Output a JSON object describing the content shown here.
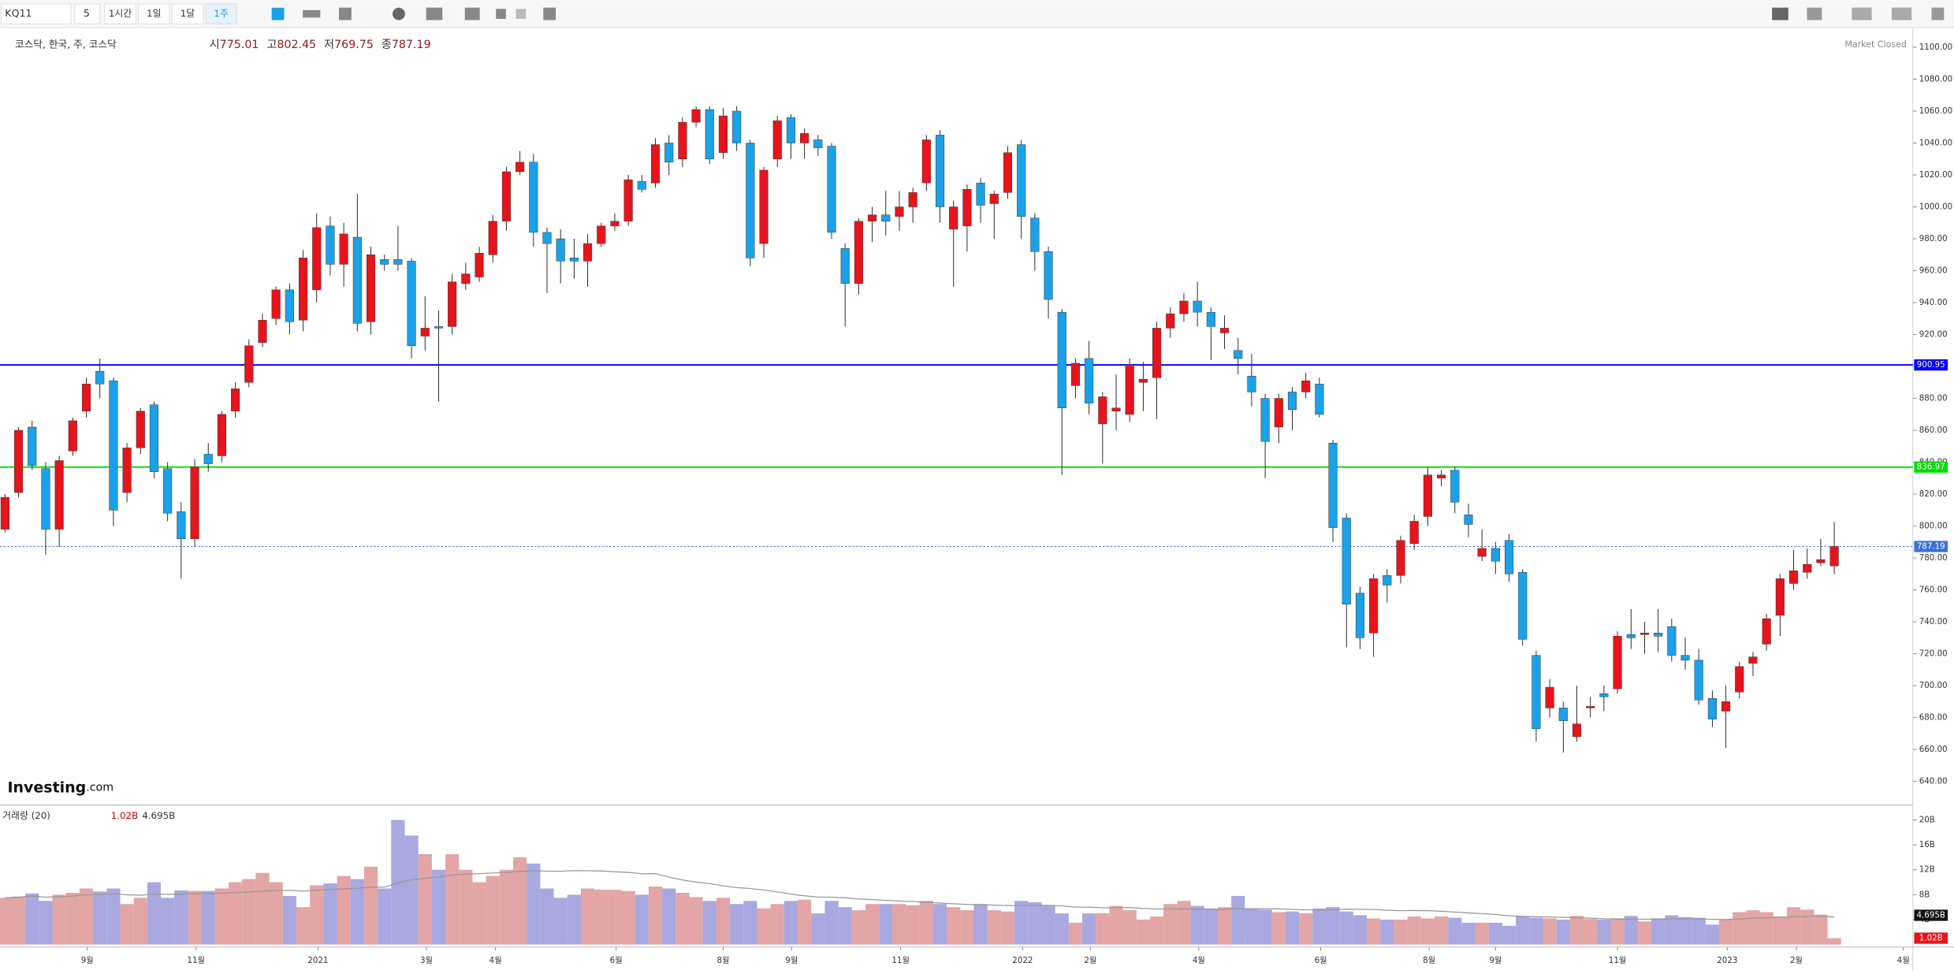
{
  "toolbar": {
    "symbol": "KQ11",
    "interval_value": "5",
    "intervals": [
      "1시간",
      "1일",
      "1달",
      "1주"
    ],
    "active": 3
  },
  "chart_data": {
    "type": "candlestick",
    "title": "코스닥, 한국, 주, 코스닥",
    "status": "Market Closed",
    "brand": "Investing",
    "brand_suffix": ".com",
    "ohlc_labels": [
      {
        "label": "시",
        "value": 775.01
      },
      {
        "label": "고",
        "value": 802.45
      },
      {
        "label": "저",
        "value": 769.75
      },
      {
        "label": "종",
        "value": 787.19
      }
    ],
    "up_color": "#e8141b",
    "down_color": "#1ba1e8",
    "open": [
      798,
      821,
      862,
      836,
      798,
      847,
      872,
      897,
      891,
      821,
      849,
      876,
      836,
      809,
      792,
      845,
      844,
      872,
      890,
      915,
      930,
      948,
      929,
      948,
      988,
      964,
      981,
      928,
      967,
      967,
      966,
      919,
      925,
      925,
      952,
      956,
      970,
      991,
      1022,
      1028,
      984,
      980,
      968,
      966,
      977,
      988,
      991,
      1016,
      1015,
      1040,
      1030,
      1053,
      1061,
      1034,
      1060,
      1040,
      977,
      1030,
      1056,
      1040,
      1042,
      1038,
      974,
      952,
      991,
      995,
      994,
      1000,
      1015,
      1045,
      986,
      988,
      1015,
      1002,
      1009,
      1039,
      993,
      972,
      934,
      888,
      905,
      864,
      872,
      870,
      890,
      893,
      924,
      933,
      941,
      934,
      921,
      910,
      894,
      880,
      862,
      884,
      884,
      889,
      852,
      805,
      758,
      733,
      769,
      769,
      789,
      806,
      830,
      835,
      807,
      781,
      786,
      791,
      771,
      719,
      686,
      686,
      668,
      686,
      695,
      698,
      732,
      732,
      733,
      737,
      719,
      716,
      692,
      684,
      696,
      714,
      726,
      744,
      764,
      771,
      777,
      775.01
    ],
    "high": [
      820,
      862,
      866,
      840,
      844,
      868,
      893,
      905,
      893,
      852,
      874,
      878,
      840,
      815,
      842,
      852,
      872,
      890,
      917,
      933,
      950,
      952,
      973,
      996,
      994,
      990,
      1008,
      975,
      970,
      988,
      968,
      944,
      935,
      958,
      965,
      975,
      995,
      1025,
      1035,
      1033,
      987,
      986,
      980,
      983,
      990,
      996,
      1020,
      1020,
      1043,
      1045,
      1056,
      1063,
      1063,
      1062,
      1063,
      1042,
      1025,
      1057,
      1058,
      1049,
      1045,
      1040,
      977,
      993,
      1000,
      1010,
      1010,
      1012,
      1045,
      1048,
      1004,
      1014,
      1018,
      1010,
      1038,
      1042,
      996,
      975,
      936,
      905,
      916,
      884,
      895,
      905,
      903,
      928,
      937,
      946,
      953,
      937,
      932,
      918,
      908,
      883,
      883,
      887,
      896,
      893,
      854,
      808,
      762,
      770,
      773,
      794,
      807,
      837,
      835,
      837,
      814,
      798,
      790,
      795,
      773,
      722,
      704,
      690,
      700,
      693,
      700,
      734,
      748,
      740,
      748,
      742,
      730,
      723,
      697,
      700,
      715,
      721,
      745,
      770,
      785,
      786,
      792,
      802.45
    ],
    "low": [
      796,
      818,
      835,
      782,
      787,
      844,
      868,
      880,
      800,
      815,
      845,
      830,
      803,
      767,
      787,
      834,
      840,
      868,
      887,
      912,
      926,
      920,
      922,
      940,
      957,
      950,
      922,
      920,
      960,
      960,
      905,
      910,
      878,
      920,
      948,
      953,
      965,
      985,
      1020,
      975,
      946,
      952,
      955,
      950,
      975,
      985,
      988,
      1009,
      1012,
      1020,
      1025,
      1050,
      1027,
      1030,
      1035,
      963,
      968,
      1025,
      1030,
      1030,
      1032,
      980,
      925,
      945,
      978,
      982,
      985,
      990,
      1010,
      990,
      950,
      972,
      990,
      980,
      1005,
      980,
      960,
      930,
      832,
      880,
      870,
      839,
      860,
      865,
      872,
      867,
      918,
      928,
      925,
      904,
      911,
      895,
      875,
      830,
      852,
      860,
      880,
      868,
      790,
      724,
      723,
      718,
      752,
      764,
      785,
      800,
      825,
      808,
      793,
      778,
      770,
      765,
      725,
      665,
      680,
      658,
      665,
      680,
      684,
      695,
      723,
      720,
      721,
      715,
      710,
      688,
      674,
      661,
      692,
      706,
      722,
      731,
      760,
      767,
      775,
      769.75
    ],
    "close": [
      818,
      860,
      838,
      798,
      841,
      866,
      889,
      889,
      810,
      849,
      872,
      834,
      808,
      792,
      837,
      839,
      870,
      886,
      913,
      929,
      948,
      928,
      968,
      987,
      964,
      983,
      927,
      970,
      964,
      964,
      913,
      924,
      924,
      953,
      958,
      971,
      991,
      1022,
      1028,
      984,
      977,
      966,
      966,
      977,
      988,
      991,
      1017,
      1011,
      1039,
      1028,
      1053,
      1061,
      1030,
      1057,
      1040,
      968,
      1023,
      1054,
      1040,
      1046,
      1037,
      984,
      952,
      991,
      995,
      991,
      1000,
      1009,
      1042,
      1000,
      1000,
      1011,
      1001,
      1008,
      1034,
      994,
      972,
      942,
      874,
      902,
      877,
      881,
      874,
      901,
      892,
      924,
      933,
      941,
      934,
      925,
      924,
      905,
      884,
      853,
      880,
      873,
      891,
      870,
      799,
      751,
      730,
      767,
      763,
      791,
      803,
      832,
      832,
      815,
      801,
      786,
      778,
      770,
      729,
      673,
      699,
      678,
      676,
      687,
      693,
      731,
      730,
      733,
      731,
      719,
      716,
      691,
      679,
      690,
      712,
      718,
      742,
      767,
      772,
      776,
      779,
      787.19
    ],
    "xlim": [
      -0.37,
      140.8
    ],
    "xticks": [
      {
        "value": 6.07,
        "label": "9월"
      },
      {
        "value": 14.1,
        "label": "11월"
      },
      {
        "value": 23.1,
        "label": "2021"
      },
      {
        "value": 31.1,
        "label": "3월"
      },
      {
        "value": 36.2,
        "label": "4월"
      },
      {
        "value": 45.1,
        "label": "6월"
      },
      {
        "value": 53.0,
        "label": "8월"
      },
      {
        "value": 58.05,
        "label": "9월"
      },
      {
        "value": 66.1,
        "label": "11월"
      },
      {
        "value": 75.1,
        "label": "2022"
      },
      {
        "value": 80.1,
        "label": "2월"
      },
      {
        "value": 88.1,
        "label": "4월"
      },
      {
        "value": 97.1,
        "label": "6월"
      },
      {
        "value": 105.1,
        "label": "8월"
      },
      {
        "value": 110.0,
        "label": "9월"
      },
      {
        "value": 119.0,
        "label": "11월"
      },
      {
        "value": 127.1,
        "label": "2023"
      },
      {
        "value": 132.2,
        "label": "2월"
      },
      {
        "value": 140.1,
        "label": "4월"
      }
    ],
    "ylim": [
      626,
      1110
    ],
    "yticks": [
      {
        "value": 640,
        "label": "640.00"
      },
      {
        "value": 660,
        "label": "660.00"
      },
      {
        "value": 680,
        "label": "680.00"
      },
      {
        "value": 700,
        "label": "700.00"
      },
      {
        "value": 720,
        "label": "720.00"
      },
      {
        "value": 740,
        "label": "740.00"
      },
      {
        "value": 760,
        "label": "760.00"
      },
      {
        "value": 780,
        "label": "780.00"
      },
      {
        "value": 800,
        "label": "800.00"
      },
      {
        "value": 820,
        "label": "820.00"
      },
      {
        "value": 840,
        "label": "840.00"
      },
      {
        "value": 860,
        "label": "860.00"
      },
      {
        "value": 880,
        "label": "880.00"
      },
      {
        "value": 900,
        "label": "900.00"
      },
      {
        "value": 920,
        "label": "920.00"
      },
      {
        "value": 940,
        "label": "940.00"
      },
      {
        "value": 960,
        "label": "960.00"
      },
      {
        "value": 980,
        "label": "980.00"
      },
      {
        "value": 1000,
        "label": "1000.00"
      },
      {
        "value": 1020,
        "label": "1020.00"
      },
      {
        "value": 1040,
        "label": "1040.00"
      },
      {
        "value": 1060,
        "label": "1060.00"
      },
      {
        "value": 1080,
        "label": "1080.00"
      },
      {
        "value": 1100,
        "label": "1100.00"
      }
    ],
    "lines": [
      {
        "value": 900.95,
        "color": "#0000ff"
      },
      {
        "value": 836.97,
        "color": "#00dd00"
      }
    ],
    "volume": {
      "title": "거래량 (20)",
      "ylim": [
        0,
        21.6
      ],
      "yticks": [
        {
          "value": 4,
          "label": "4B"
        },
        {
          "value": 8,
          "label": "8B"
        },
        {
          "value": 12,
          "label": "12B"
        },
        {
          "value": 16,
          "label": "16B"
        },
        {
          "value": 20,
          "label": "20B"
        }
      ],
      "up_color": "#e3a5a5",
      "down_color": "#a9a8e0",
      "values": [
        7.5,
        7.7,
        8.2,
        7,
        8,
        8.3,
        9,
        8.5,
        9,
        6.5,
        7.5,
        10,
        7.5,
        8.7,
        8.6,
        8.6,
        9,
        10,
        10.5,
        11.5,
        10,
        7.8,
        6,
        9.5,
        9.8,
        11,
        10.5,
        12.5,
        9,
        20,
        17.5,
        14.5,
        12,
        14.5,
        12,
        10,
        11,
        12,
        14,
        13,
        9,
        7.5,
        8,
        9,
        8.8,
        8.8,
        8.6,
        8,
        9.3,
        9,
        8.3,
        7.6,
        7,
        7.5,
        6.5,
        7,
        5.8,
        6.5,
        7,
        7.2,
        5,
        7,
        6,
        5.5,
        6.5,
        6.5,
        6.5,
        6.3,
        7,
        6.5,
        6,
        5.5,
        6.5,
        5.5,
        5.3,
        7,
        6.8,
        6.2,
        5,
        3.5,
        5,
        5,
        6.2,
        5.5,
        4,
        4.5,
        6.5,
        7,
        6.2,
        5.8,
        6,
        7.8,
        5.8,
        5.6,
        5.2,
        5.3,
        5,
        5.8,
        6,
        5.3,
        4.7,
        4.2,
        4,
        4,
        4.5,
        4.2,
        4.5,
        4.3,
        3.5,
        3.5,
        3.5,
        3,
        4.5,
        4.3,
        4.2,
        4,
        4.6,
        4.1,
        4,
        4.2,
        4.6,
        3.7,
        4.2,
        4.7,
        4.4,
        4.3,
        3.2,
        4,
        5.2,
        5.5,
        5.2,
        4.5,
        6,
        5.6,
        4.8,
        1.02
      ],
      "value_labels_last": "1.02B",
      "ma_value": 4.695,
      "ma_label": "4.695B"
    }
  }
}
